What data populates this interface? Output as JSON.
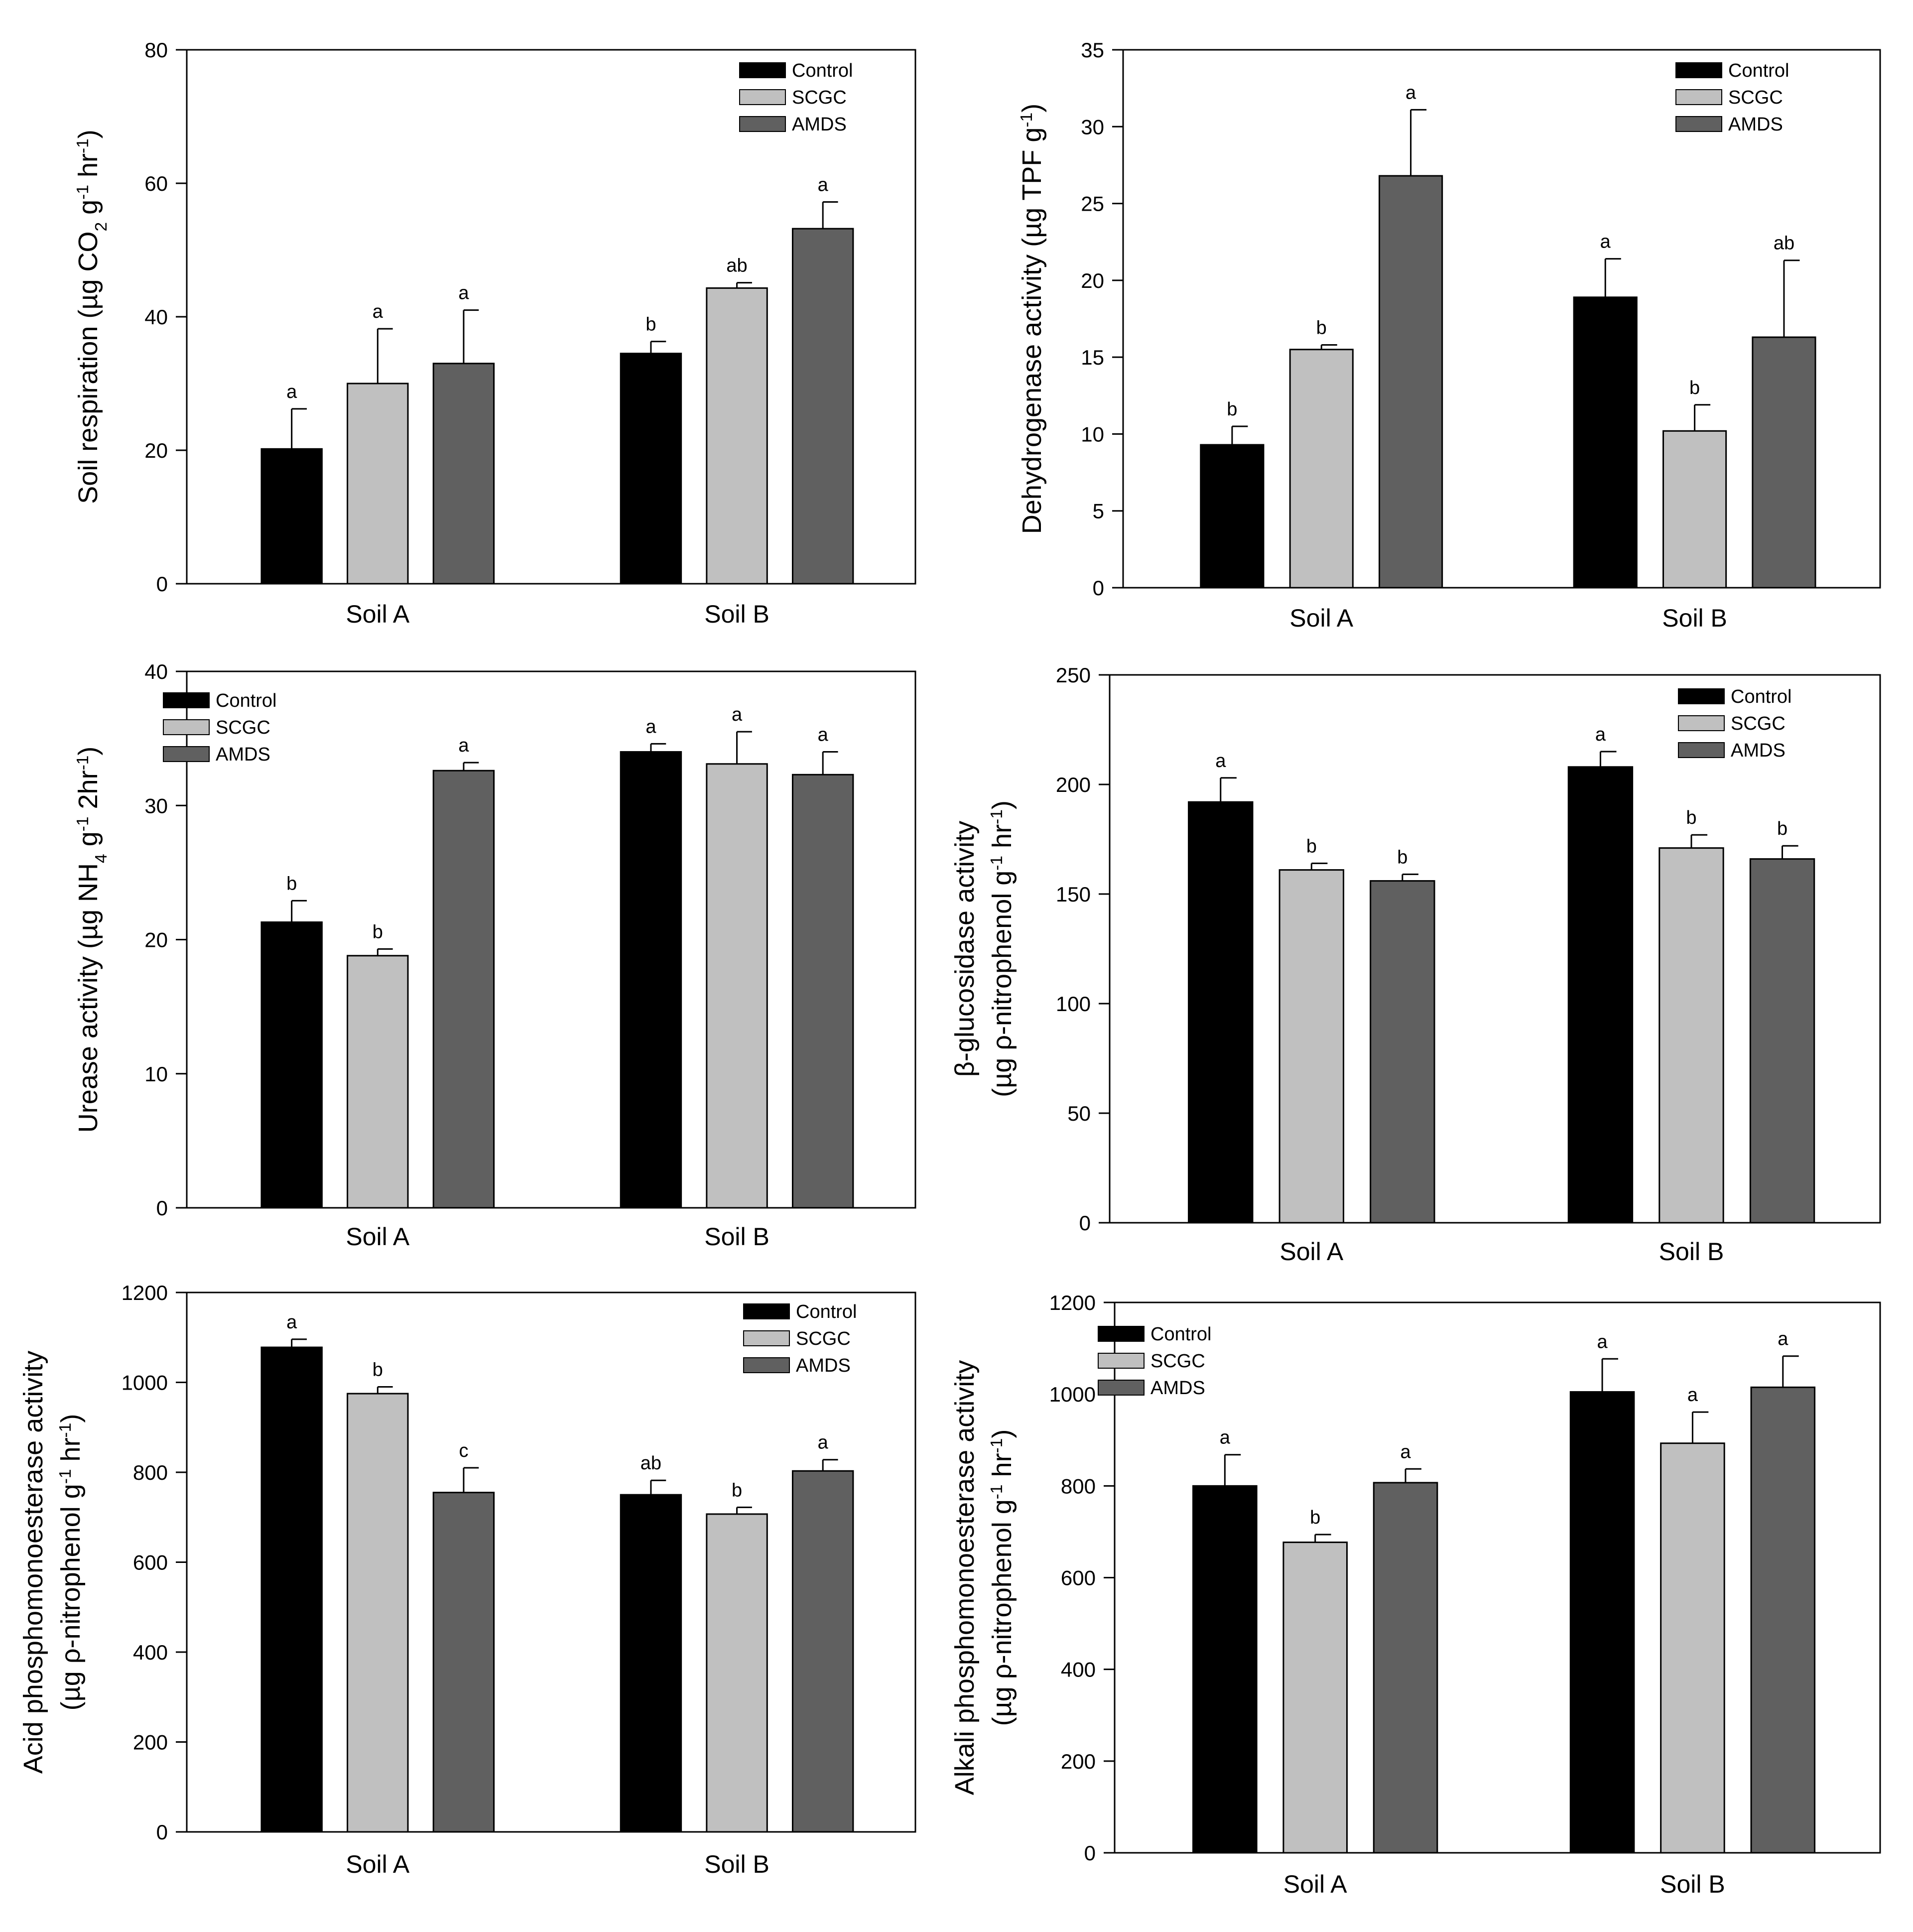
{
  "colors": {
    "Control": "#000000",
    "SCGC": "#c0c0c0",
    "AMDS": "#606060",
    "axis": "#000000"
  },
  "chart_data": [
    {
      "type": "bar",
      "ylabel_parts": [
        {
          "t": "Soil respiration (µg CO"
        },
        {
          "t": "2",
          "s": "sub"
        },
        {
          "t": " g"
        },
        {
          "t": "-1",
          "s": "sup"
        },
        {
          "t": " hr"
        },
        {
          "t": "-1",
          "s": "sup"
        },
        {
          "t": ")"
        }
      ],
      "ylim": [
        0,
        80
      ],
      "yticks": [
        0,
        20,
        40,
        60,
        80
      ],
      "categories": [
        "Soil A",
        "Soil B"
      ],
      "legend_position": "top-right",
      "series": [
        {
          "name": "Control",
          "values": [
            20.2,
            34.5
          ],
          "errors": [
            6.0,
            1.8
          ],
          "letters": [
            "a",
            "b"
          ]
        },
        {
          "name": "SCGC",
          "values": [
            30.0,
            44.3
          ],
          "errors": [
            8.2,
            0.8
          ],
          "letters": [
            "a",
            "ab"
          ]
        },
        {
          "name": "AMDS",
          "values": [
            33.0,
            53.2
          ],
          "errors": [
            8.0,
            4.0
          ],
          "letters": [
            "a",
            "a"
          ]
        }
      ]
    },
    {
      "type": "bar",
      "ylabel_parts": [
        {
          "t": "Dehydrogenase activity (µg TPF g"
        },
        {
          "t": "-1",
          "s": "sup"
        },
        {
          "t": ")"
        }
      ],
      "ylim": [
        0,
        35
      ],
      "yticks": [
        0,
        5,
        10,
        15,
        20,
        25,
        30,
        35
      ],
      "categories": [
        "Soil A",
        "Soil B"
      ],
      "legend_position": "top-right",
      "series": [
        {
          "name": "Control",
          "values": [
            9.3,
            18.9
          ],
          "errors": [
            1.2,
            2.5
          ],
          "letters": [
            "b",
            "a"
          ]
        },
        {
          "name": "SCGC",
          "values": [
            15.5,
            10.2
          ],
          "errors": [
            0.3,
            1.7
          ],
          "letters": [
            "b",
            "b"
          ]
        },
        {
          "name": "AMDS",
          "values": [
            26.8,
            16.3
          ],
          "errors": [
            4.3,
            5.0
          ],
          "letters": [
            "a",
            "ab"
          ]
        }
      ]
    },
    {
      "type": "bar",
      "ylabel_parts": [
        {
          "t": "Urease activity (µg NH"
        },
        {
          "t": "4",
          "s": "sub"
        },
        {
          "t": " g"
        },
        {
          "t": "-1",
          "s": "sup"
        },
        {
          "t": " 2hr"
        },
        {
          "t": "-1",
          "s": "sup"
        },
        {
          "t": ")"
        }
      ],
      "ylim": [
        0,
        40
      ],
      "yticks": [
        0,
        10,
        20,
        30,
        40
      ],
      "categories": [
        "Soil A",
        "Soil B"
      ],
      "legend_position": "top-left",
      "series": [
        {
          "name": "Control",
          "values": [
            21.3,
            34.0
          ],
          "errors": [
            1.6,
            0.6
          ],
          "letters": [
            "b",
            "a"
          ]
        },
        {
          "name": "SCGC",
          "values": [
            18.8,
            33.1
          ],
          "errors": [
            0.5,
            2.4
          ],
          "letters": [
            "b",
            "a"
          ]
        },
        {
          "name": "AMDS",
          "values": [
            32.6,
            32.3
          ],
          "errors": [
            0.6,
            1.7
          ],
          "letters": [
            "a",
            "a"
          ]
        }
      ]
    },
    {
      "type": "bar",
      "ylabel_parts": [
        {
          "t": "β-glucosidase activity"
        }
      ],
      "ylabel2_parts": [
        {
          "t": "(µg ρ-nitrophenol g"
        },
        {
          "t": "-1",
          "s": "sup"
        },
        {
          "t": " hr"
        },
        {
          "t": "-1",
          "s": "sup"
        },
        {
          "t": ")"
        }
      ],
      "ylim": [
        0,
        250
      ],
      "yticks": [
        0,
        50,
        100,
        150,
        200,
        250
      ],
      "categories": [
        "Soil A",
        "Soil B"
      ],
      "legend_position": "top-right",
      "series": [
        {
          "name": "Control",
          "values": [
            192,
            208
          ],
          "errors": [
            11,
            7
          ],
          "letters": [
            "a",
            "a"
          ]
        },
        {
          "name": "SCGC",
          "values": [
            161,
            171
          ],
          "errors": [
            3,
            6
          ],
          "letters": [
            "b",
            "b"
          ]
        },
        {
          "name": "AMDS",
          "values": [
            156,
            166
          ],
          "errors": [
            3,
            6
          ],
          "letters": [
            "b",
            "b"
          ]
        }
      ]
    },
    {
      "type": "bar",
      "ylabel_parts": [
        {
          "t": "Acid phosphomonoesterase activity"
        }
      ],
      "ylabel2_parts": [
        {
          "t": "(µg ρ-nitrophenol g"
        },
        {
          "t": "-1",
          "s": "sup"
        },
        {
          "t": " hr"
        },
        {
          "t": "-1",
          "s": "sup"
        },
        {
          "t": ")"
        }
      ],
      "ylim": [
        0,
        1200
      ],
      "yticks": [
        0,
        200,
        400,
        600,
        800,
        1000,
        1200
      ],
      "categories": [
        "Soil A",
        "Soil B"
      ],
      "legend_position": "top-right",
      "series": [
        {
          "name": "Control",
          "values": [
            1078,
            750
          ],
          "errors": [
            18,
            32
          ],
          "letters": [
            "a",
            "ab"
          ]
        },
        {
          "name": "SCGC",
          "values": [
            975,
            707
          ],
          "errors": [
            15,
            15
          ],
          "letters": [
            "b",
            "b"
          ]
        },
        {
          "name": "AMDS",
          "values": [
            755,
            803
          ],
          "errors": [
            55,
            25
          ],
          "letters": [
            "c",
            "a"
          ]
        }
      ]
    },
    {
      "type": "bar",
      "ylabel_parts": [
        {
          "t": "Alkali phosphomonoesterase activity"
        }
      ],
      "ylabel2_parts": [
        {
          "t": "(µg ρ-nitrophenol g"
        },
        {
          "t": "-1",
          "s": "sup"
        },
        {
          "t": " hr"
        },
        {
          "t": "-1",
          "s": "sup"
        },
        {
          "t": ")"
        }
      ],
      "ylim": [
        0,
        1200
      ],
      "yticks": [
        0,
        200,
        400,
        600,
        800,
        1000,
        1200
      ],
      "categories": [
        "Soil A",
        "Soil B"
      ],
      "legend_position": "top-left",
      "series": [
        {
          "name": "Control",
          "values": [
            800,
            1005
          ],
          "errors": [
            68,
            72
          ],
          "letters": [
            "a",
            "a"
          ]
        },
        {
          "name": "SCGC",
          "values": [
            677,
            893
          ],
          "errors": [
            17,
            68
          ],
          "letters": [
            "b",
            "a"
          ]
        },
        {
          "name": "AMDS",
          "values": [
            807,
            1015
          ],
          "errors": [
            30,
            68
          ],
          "letters": [
            "a",
            "a"
          ]
        }
      ]
    }
  ]
}
